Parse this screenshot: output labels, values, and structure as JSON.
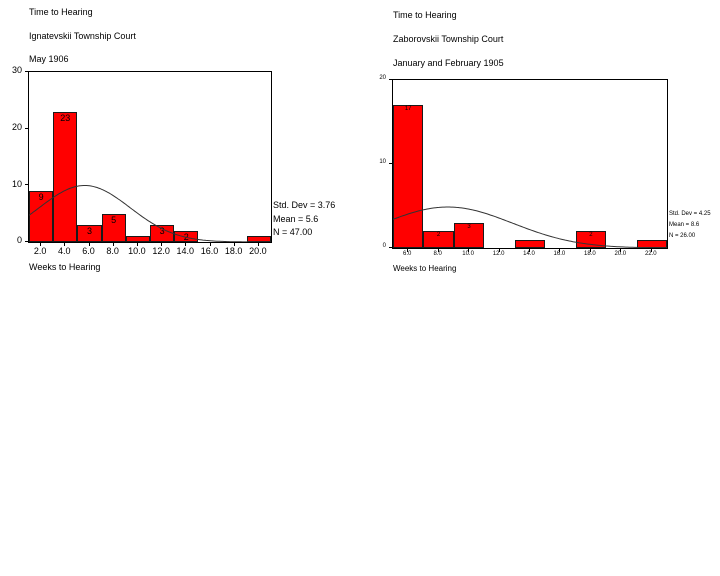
{
  "page": {
    "background": "#ffffff",
    "xlabel": "Weeks to Hearing"
  },
  "chart_data": [
    {
      "type": "bar",
      "subtype": "histogram",
      "title_lines": [
        "Time to Hearing",
        "Ignatevskii Township Court",
        "May 1906"
      ],
      "xlabel": "Weeks to Hearing",
      "ylabel": "",
      "categories": [
        "2.0",
        "4.0",
        "6.0",
        "8.0",
        "10.0",
        "12.0",
        "14.0",
        "16.0",
        "18.0",
        "20.0"
      ],
      "bin_centers": [
        2,
        4,
        6,
        8,
        10,
        12,
        14,
        16,
        18,
        20
      ],
      "bin_width": 2,
      "values": [
        9,
        23,
        3,
        5,
        1,
        3,
        2,
        0,
        0,
        1
      ],
      "bar_labels": [
        "9",
        "23",
        "3",
        "5",
        "",
        "3",
        "2",
        "",
        "",
        ""
      ],
      "ylim": [
        0,
        30
      ],
      "yticks": [
        0,
        10,
        20,
        30
      ],
      "xlim": [
        1,
        21
      ],
      "grid": false,
      "legend_position": "none",
      "stats_text": [
        "Std. Dev = 3.76",
        "Mean = 5.6",
        "N = 47.00"
      ],
      "stats": {
        "std_dev": 3.76,
        "mean": 5.6,
        "n": 47
      },
      "overlay": "normal-curve",
      "bar_color": "#ff0000",
      "bar_border_color": "#1a1a1a",
      "curve_color": "#333333"
    },
    {
      "type": "bar",
      "subtype": "histogram",
      "title_lines": [
        "Time to Hearing",
        "Zaborovskii Township Court",
        "January and February 1905"
      ],
      "xlabel": "Weeks to Hearing",
      "ylabel": "",
      "categories": [
        "6.0",
        "8.0",
        "10.0",
        "12.0",
        "14.0",
        "16.0",
        "18.0",
        "20.0",
        "22.0"
      ],
      "bin_centers": [
        6,
        8,
        10,
        12,
        14,
        16,
        18,
        20,
        22
      ],
      "bin_width": 2,
      "values": [
        17,
        2,
        3,
        0,
        1,
        0,
        2,
        0,
        1
      ],
      "bar_labels": [
        "17",
        "2",
        "3",
        "",
        "",
        "",
        "2",
        "",
        ""
      ],
      "ylim": [
        0,
        20
      ],
      "yticks": [
        0,
        10,
        20
      ],
      "xlim": [
        5,
        23
      ],
      "grid": false,
      "legend_position": "none",
      "stats_text": [
        "Std. Dev = 4.25",
        "Mean = 8.6",
        "N = 26.00"
      ],
      "stats": {
        "std_dev": 4.25,
        "mean": 8.6,
        "n": 26
      },
      "overlay": "normal-curve",
      "bar_color": "#ff0000",
      "bar_border_color": "#1a1a1a",
      "curve_color": "#333333"
    }
  ]
}
